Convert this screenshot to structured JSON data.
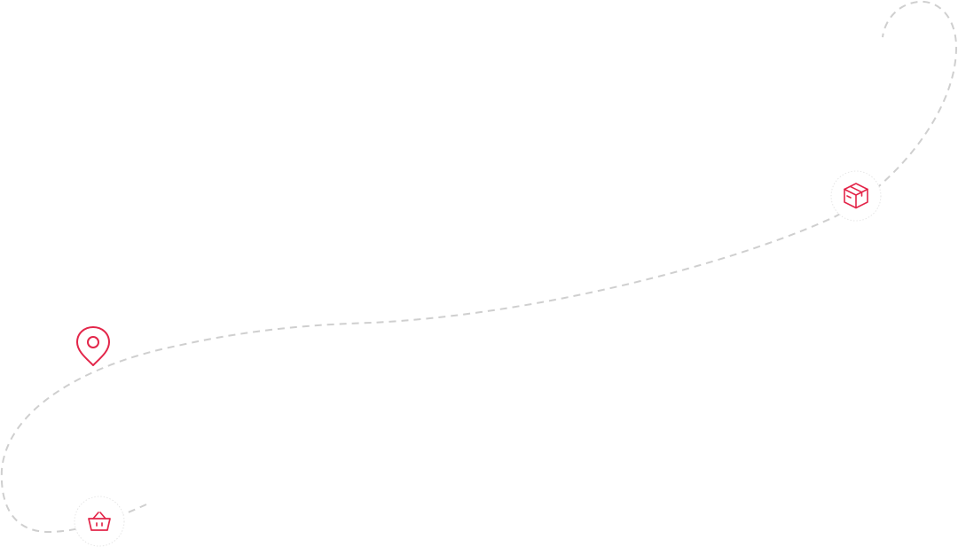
{
  "colors": {
    "accent": "#e3264a",
    "route": "#cfcfcf",
    "circle_border": "#e6e6e6",
    "background": "#ffffff"
  },
  "icons": {
    "start": "location-pin-icon",
    "middle": "package-box-icon",
    "end": "shopping-basket-icon"
  }
}
